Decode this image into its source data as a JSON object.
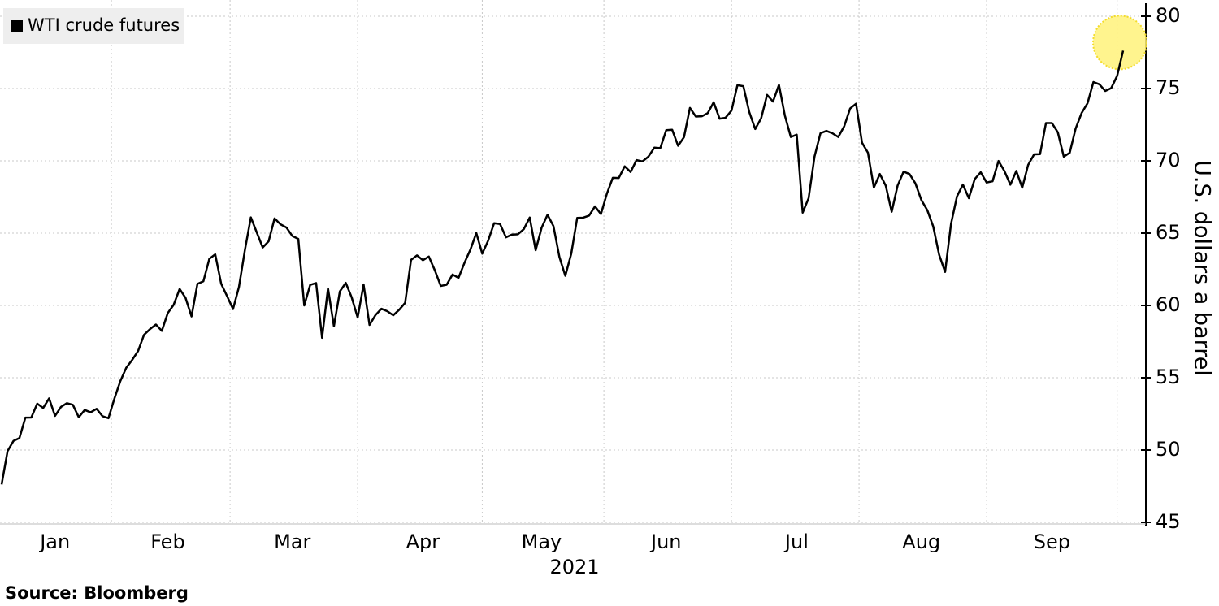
{
  "chart_data": {
    "type": "line",
    "legend": "top-left",
    "grid": true,
    "xlabel": "2021",
    "ylabel": "U.S. dollars a barrel",
    "source": "Source: Bloomberg",
    "ylim": [
      45,
      80
    ],
    "yticks": [
      45,
      50,
      55,
      60,
      65,
      70,
      75,
      80
    ],
    "highlight_last": true,
    "categories": [
      null,
      null,
      null,
      null,
      null,
      null,
      null,
      null,
      null,
      "Jan",
      null,
      null,
      null,
      null,
      null,
      null,
      null,
      null,
      null,
      null,
      null,
      null,
      null,
      null,
      null,
      null,
      null,
      null,
      "Feb",
      null,
      null,
      null,
      null,
      null,
      null,
      null,
      null,
      null,
      null,
      null,
      null,
      null,
      null,
      null,
      null,
      null,
      null,
      null,
      null,
      "Mar",
      null,
      null,
      null,
      null,
      null,
      null,
      null,
      null,
      null,
      null,
      null,
      null,
      null,
      null,
      null,
      null,
      null,
      null,
      null,
      null,
      null,
      "Apr",
      null,
      null,
      null,
      null,
      null,
      null,
      null,
      null,
      null,
      null,
      null,
      null,
      null,
      null,
      null,
      null,
      null,
      null,
      null,
      "May",
      null,
      null,
      null,
      null,
      null,
      null,
      null,
      null,
      null,
      null,
      null,
      null,
      null,
      null,
      null,
      null,
      null,
      null,
      null,
      null,
      "Jun",
      null,
      null,
      null,
      null,
      null,
      null,
      null,
      null,
      null,
      null,
      null,
      null,
      null,
      null,
      null,
      null,
      null,
      null,
      null,
      null,
      null,
      "Jul",
      null,
      null,
      null,
      null,
      null,
      null,
      null,
      null,
      null,
      null,
      null,
      null,
      null,
      null,
      null,
      null,
      null,
      null,
      null,
      null,
      "Aug",
      null,
      null,
      null,
      null,
      null,
      null,
      null,
      null,
      null,
      null,
      null,
      null,
      null,
      null,
      null,
      null,
      null,
      null,
      null,
      null,
      null,
      "Sep",
      null,
      null,
      null,
      null,
      null,
      null,
      null,
      null,
      null,
      null,
      null,
      null
    ],
    "series": [
      {
        "name": "WTI crude futures",
        "color": "#000000",
        "values": [
          47.62,
          49.93,
          50.63,
          50.83,
          52.24,
          52.25,
          53.21,
          52.91,
          53.57,
          52.36,
          52.98,
          53.24,
          53.13,
          52.27,
          52.77,
          52.61,
          52.85,
          52.34,
          52.2,
          53.55,
          54.76,
          55.69,
          56.23,
          56.85,
          57.97,
          58.36,
          58.68,
          58.24,
          59.47,
          60.05,
          61.14,
          60.52,
          59.24,
          61.49,
          61.67,
          63.22,
          63.53,
          61.5,
          60.64,
          59.75,
          61.28,
          63.83,
          66.09,
          65.05,
          64.01,
          64.44,
          66.02,
          65.61,
          65.39,
          64.8,
          64.6,
          60.0,
          61.42,
          61.55,
          57.76,
          61.18,
          58.56,
          60.97,
          61.56,
          60.55,
          59.16,
          61.45,
          58.65,
          59.33,
          59.77,
          59.6,
          59.32,
          59.7,
          60.18,
          63.15,
          63.46,
          63.13,
          63.38,
          62.44,
          61.35,
          61.43,
          62.14,
          61.91,
          62.94,
          63.86,
          65.01,
          63.58,
          64.49,
          65.69,
          65.63,
          64.71,
          64.9,
          64.92,
          65.28,
          66.08,
          63.82,
          65.37,
          66.27,
          65.49,
          63.36,
          62.05,
          63.58,
          66.05,
          66.07,
          66.21,
          66.85,
          66.32,
          67.72,
          68.83,
          68.81,
          69.62,
          69.23,
          70.05,
          69.96,
          70.29,
          70.91,
          70.88,
          72.12,
          72.15,
          71.04,
          71.64,
          73.66,
          73.06,
          73.08,
          73.3,
          74.05,
          72.91,
          72.98,
          73.47,
          75.23,
          75.16,
          73.37,
          72.2,
          72.94,
          74.56,
          74.1,
          75.25,
          73.13,
          71.65,
          71.81,
          66.42,
          67.42,
          70.3,
          71.91,
          72.07,
          71.91,
          71.65,
          72.39,
          73.62,
          73.95,
          71.26,
          70.56,
          68.15,
          69.09,
          68.28,
          66.48,
          68.29,
          69.25,
          69.09,
          68.44,
          67.29,
          66.59,
          65.46,
          63.5,
          62.32,
          65.64,
          67.54,
          68.36,
          67.42,
          68.74,
          69.21,
          68.5,
          68.59,
          69.99,
          69.29,
          68.35,
          69.3,
          68.14,
          69.72,
          70.45,
          70.46,
          72.61,
          72.61,
          71.97,
          70.29,
          70.56,
          72.23,
          73.3,
          73.98,
          75.45,
          75.29,
          74.83,
          75.03,
          75.88,
          77.62
        ]
      }
    ]
  }
}
